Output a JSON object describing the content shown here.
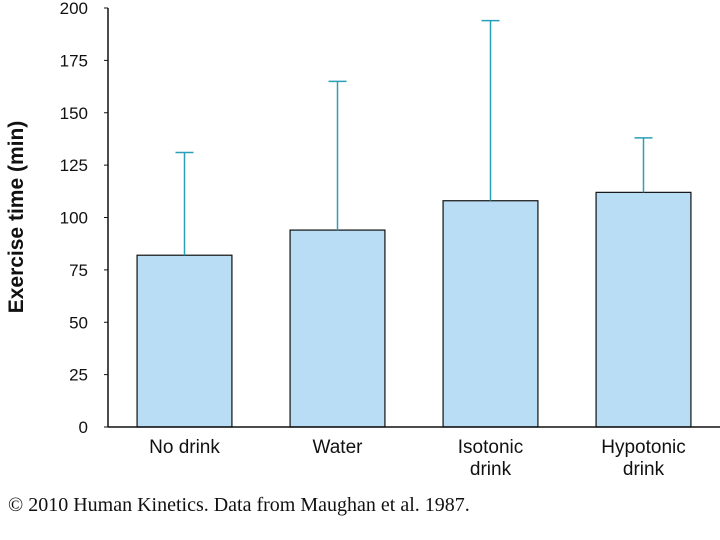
{
  "chart_data": {
    "type": "bar",
    "categories": [
      [
        "No drink"
      ],
      [
        "Water"
      ],
      [
        "Isotonic",
        "drink"
      ],
      [
        "Hypotonic",
        "drink"
      ]
    ],
    "values": [
      82,
      94,
      108,
      112
    ],
    "error_upper": [
      131,
      165,
      194,
      138
    ],
    "ylabel": "Exercise time (min)",
    "xlabel": "",
    "ylim": [
      0,
      200
    ],
    "yticks": [
      0,
      25,
      50,
      75,
      100,
      125,
      150,
      175,
      200
    ],
    "grid": false,
    "bar_color": "#b8ddf5",
    "error_color": "#2a9fb8"
  },
  "credit": "© 2010 Human Kinetics. Data from Maughan et al. 1987."
}
